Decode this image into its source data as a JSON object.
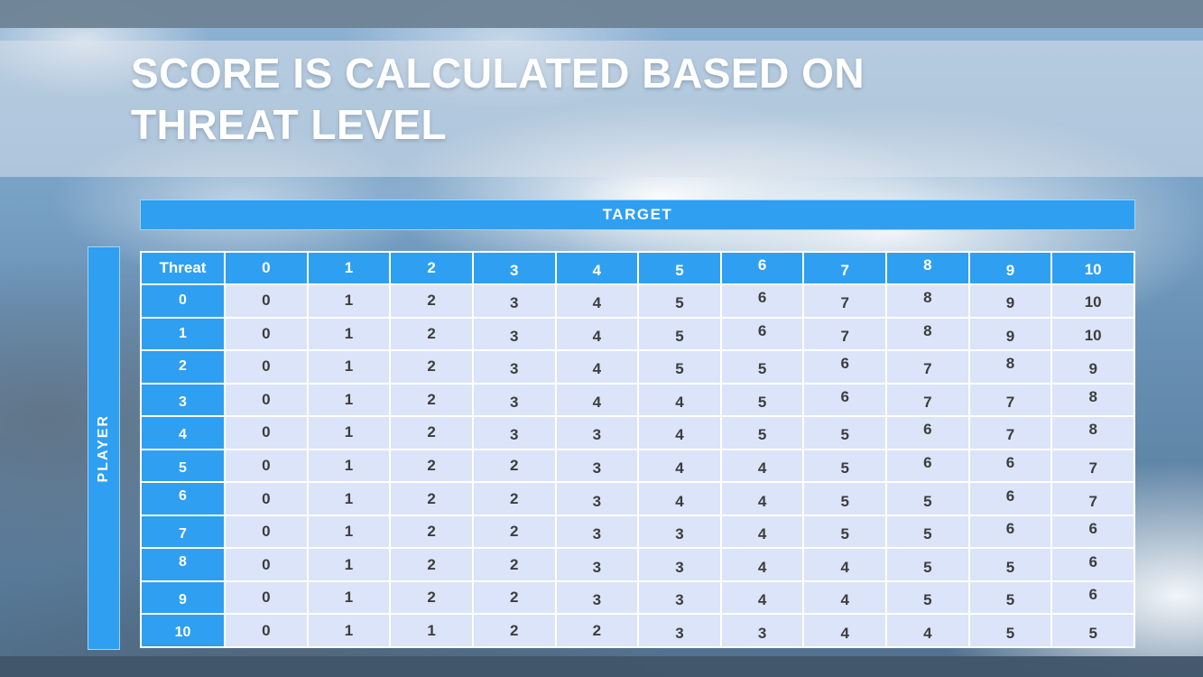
{
  "title": {
    "line1": "SCORE IS CALCULATED BASED ON",
    "line2": "THREAT LEVEL"
  },
  "chart_data": {
    "type": "table",
    "title": "Score is calculated based on threat level",
    "x_axis_label": "TARGET",
    "y_axis_label": "PLAYER",
    "corner_label": "Threat",
    "columns": [
      "0",
      "1",
      "2",
      "3",
      "4",
      "5",
      "6",
      "7",
      "8",
      "9",
      "10"
    ],
    "rows": [
      "0",
      "1",
      "2",
      "3",
      "4",
      "5",
      "6",
      "7",
      "8",
      "9",
      "10"
    ],
    "values": [
      [
        0,
        1,
        2,
        3,
        4,
        5,
        6,
        7,
        8,
        9,
        10
      ],
      [
        0,
        1,
        2,
        3,
        4,
        5,
        6,
        7,
        8,
        9,
        10
      ],
      [
        0,
        1,
        2,
        3,
        4,
        5,
        5,
        6,
        7,
        8,
        9
      ],
      [
        0,
        1,
        2,
        3,
        4,
        4,
        5,
        6,
        7,
        7,
        8
      ],
      [
        0,
        1,
        2,
        3,
        3,
        4,
        5,
        5,
        6,
        7,
        8
      ],
      [
        0,
        1,
        2,
        2,
        3,
        4,
        4,
        5,
        6,
        6,
        7
      ],
      [
        0,
        1,
        2,
        2,
        3,
        4,
        4,
        5,
        5,
        6,
        7
      ],
      [
        0,
        1,
        2,
        2,
        3,
        3,
        4,
        5,
        5,
        6,
        6
      ],
      [
        0,
        1,
        2,
        2,
        3,
        3,
        4,
        4,
        5,
        5,
        6
      ],
      [
        0,
        1,
        2,
        2,
        3,
        3,
        4,
        4,
        5,
        5,
        6
      ],
      [
        0,
        1,
        1,
        2,
        2,
        3,
        3,
        4,
        4,
        5,
        5
      ]
    ]
  },
  "colors": {
    "header_blue": "#2f9ff2",
    "cell_fill": "#dbe4f8",
    "cell_text": "#3d3d3d",
    "title_text": "#ffffff"
  }
}
